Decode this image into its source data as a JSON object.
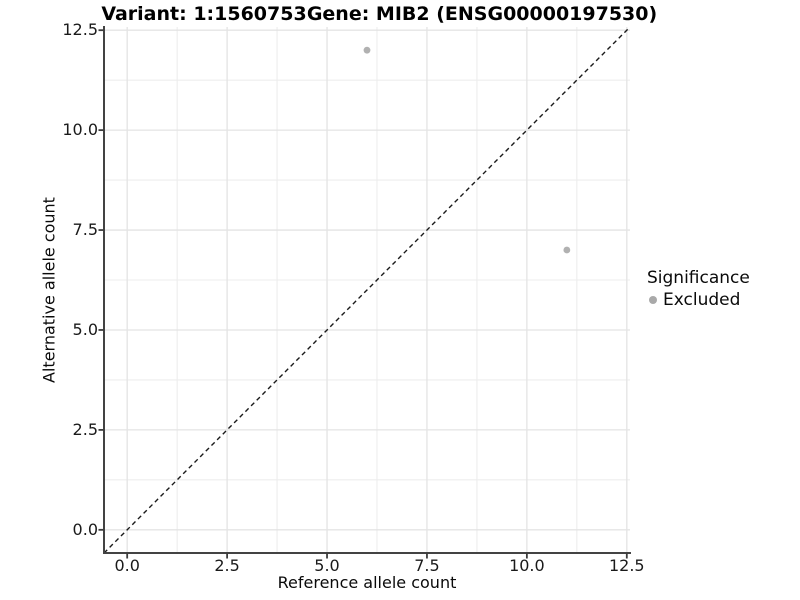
{
  "chart_data": {
    "type": "scatter",
    "title": {
      "left": "Variant: 1:1560753",
      "right": "Gene: MIB2 (ENSG00000197530)"
    },
    "xlabel": "Reference allele count",
    "ylabel": "Alternative allele count",
    "xlim": [
      -0.58,
      12.58
    ],
    "ylim": [
      -0.58,
      12.58
    ],
    "x_ticks": {
      "values": [
        0,
        2.5,
        5,
        7.5,
        10,
        12.5
      ],
      "labels": [
        "0.0",
        "2.5",
        "5.0",
        "7.5",
        "10.0",
        "12.5"
      ]
    },
    "y_ticks": {
      "values": [
        0,
        2.5,
        5,
        7.5,
        10,
        12.5
      ],
      "labels": [
        "0.0",
        "2.5",
        "5.0",
        "7.5",
        "10.0",
        "12.5"
      ]
    },
    "minor_ticks": [
      1.25,
      3.75,
      6.25,
      8.75,
      11.25
    ],
    "grid": "major+minor",
    "identity_line": {
      "slope": 1,
      "intercept": 0,
      "style": "dashed",
      "color": "#1a1a1a"
    },
    "series": [
      {
        "name": "Excluded",
        "color": "#b1b1b1",
        "points": [
          {
            "x": 6,
            "y": 12
          },
          {
            "x": 11,
            "y": 7
          }
        ]
      }
    ],
    "legend": {
      "title": "Significance",
      "position": "right",
      "items": [
        {
          "label": "Excluded",
          "color": "#a9a9a9"
        }
      ]
    }
  },
  "colors": {
    "background": "#ffffff",
    "grid_major": "#e4e4e4",
    "grid_minor": "#ededed",
    "axis_line": "#434343",
    "tick_mark": "#3d3d3d",
    "point": "#b1b1b1"
  }
}
